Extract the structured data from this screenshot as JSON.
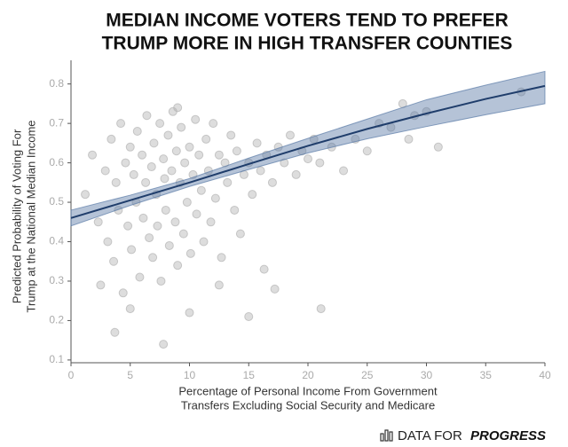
{
  "chart_data": {
    "type": "scatter",
    "title": [
      "MEDIAN INCOME VOTERS TEND TO PREFER",
      "TRUMP MORE IN HIGH TRANSFER COUNTIES"
    ],
    "y_label": [
      "Predicted Probability of Voting For",
      "Trump at the National Median Income"
    ],
    "x_label": [
      "Percentage of Personal Income From Government",
      "Transfers Excluding Social Security and Medicare"
    ],
    "xlim": [
      0,
      40
    ],
    "xticks": [
      0,
      5,
      10,
      15,
      20,
      25,
      30,
      35,
      40
    ],
    "ylim": [
      0.093,
      0.86
    ],
    "yticks": [
      0.1,
      0.2,
      0.3,
      0.4,
      0.5,
      0.6,
      0.7,
      0.8
    ],
    "points": {
      "color": "#b4b4b4",
      "x": [
        1.2,
        1.8,
        2.3,
        2.5,
        2.9,
        3.1,
        3.4,
        3.6,
        3.8,
        4.0,
        4.2,
        4.4,
        4.6,
        4.8,
        5.0,
        5.1,
        5.3,
        5.5,
        5.6,
        5.8,
        6.0,
        6.1,
        6.3,
        6.4,
        6.6,
        6.8,
        6.9,
        7.0,
        7.2,
        7.3,
        7.5,
        7.6,
        7.8,
        7.9,
        8.0,
        8.2,
        8.3,
        8.5,
        8.6,
        8.8,
        8.9,
        9.0,
        9.2,
        9.3,
        9.5,
        9.6,
        9.8,
        10.0,
        10.1,
        10.3,
        10.5,
        10.6,
        10.8,
        11.0,
        11.2,
        11.4,
        11.6,
        11.8,
        12.0,
        12.2,
        12.5,
        12.7,
        13.0,
        13.2,
        13.5,
        13.8,
        14.0,
        14.3,
        14.6,
        15.0,
        15.3,
        15.7,
        16.0,
        16.5,
        17.0,
        17.5,
        18.0,
        18.5,
        19.0,
        19.5,
        20.0,
        20.5,
        21.0,
        22.0,
        23.0,
        24.0,
        25.0,
        26.0,
        27.0,
        28.0,
        28.5,
        29.0,
        30.0,
        31.0,
        38.0,
        16.3,
        17.2,
        21.1,
        15.0,
        7.8,
        10.0,
        5.0,
        3.7,
        12.5,
        9.0
      ],
      "values": [
        0.52,
        0.62,
        0.45,
        0.29,
        0.58,
        0.4,
        0.66,
        0.35,
        0.55,
        0.48,
        0.7,
        0.27,
        0.6,
        0.44,
        0.64,
        0.38,
        0.57,
        0.5,
        0.68,
        0.31,
        0.62,
        0.46,
        0.55,
        0.72,
        0.41,
        0.59,
        0.36,
        0.65,
        0.52,
        0.44,
        0.7,
        0.3,
        0.61,
        0.56,
        0.48,
        0.67,
        0.39,
        0.58,
        0.73,
        0.45,
        0.63,
        0.34,
        0.55,
        0.69,
        0.42,
        0.6,
        0.5,
        0.64,
        0.37,
        0.57,
        0.71,
        0.47,
        0.62,
        0.53,
        0.4,
        0.66,
        0.58,
        0.45,
        0.7,
        0.51,
        0.62,
        0.36,
        0.6,
        0.55,
        0.67,
        0.48,
        0.63,
        0.42,
        0.57,
        0.6,
        0.52,
        0.65,
        0.58,
        0.62,
        0.55,
        0.64,
        0.6,
        0.67,
        0.57,
        0.63,
        0.61,
        0.66,
        0.6,
        0.64,
        0.58,
        0.66,
        0.63,
        0.7,
        0.69,
        0.75,
        0.66,
        0.72,
        0.73,
        0.64,
        0.78,
        0.33,
        0.28,
        0.23,
        0.21,
        0.14,
        0.22,
        0.23,
        0.17,
        0.29,
        0.74
      ]
    },
    "band": {
      "color": "#5a7aa6",
      "x": [
        0,
        5,
        10,
        15,
        20,
        25,
        30,
        35,
        40
      ],
      "lower": [
        0.44,
        0.492,
        0.54,
        0.583,
        0.625,
        0.661,
        0.692,
        0.722,
        0.75
      ],
      "upper": [
        0.48,
        0.518,
        0.56,
        0.612,
        0.662,
        0.711,
        0.76,
        0.797,
        0.832
      ]
    },
    "fit": {
      "color": "#1f3d6b",
      "x": [
        0,
        5,
        10,
        15,
        20,
        25,
        30,
        35,
        40
      ],
      "values": [
        0.46,
        0.505,
        0.55,
        0.597,
        0.643,
        0.686,
        0.725,
        0.762,
        0.795
      ]
    }
  },
  "logo": {
    "text1": "DATA FOR",
    "text2": "PROGRESS"
  }
}
